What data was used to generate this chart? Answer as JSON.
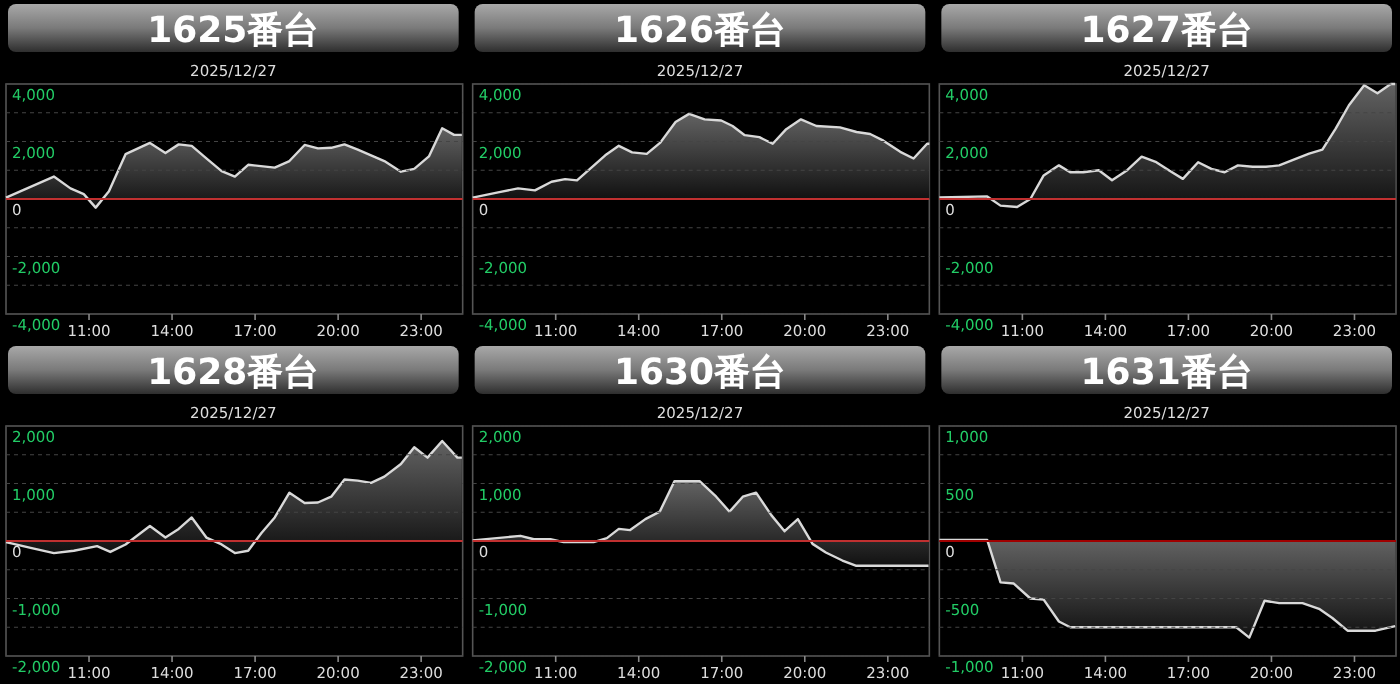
{
  "chart_data": [
    {
      "type": "area",
      "title": "1625番台",
      "subtitle": "2025/12/27",
      "xlim": [
        8,
        24.5
      ],
      "ylim": [
        -4000,
        4000
      ],
      "grid": "y",
      "xticks": [
        {
          "value": 11,
          "label": "11:00"
        },
        {
          "value": 14,
          "label": "14:00"
        },
        {
          "value": 17,
          "label": "17:00"
        },
        {
          "value": 20,
          "label": "20:00"
        },
        {
          "value": 23,
          "label": "23:00"
        }
      ],
      "yticks": [
        {
          "value": 4000,
          "label": "4,000"
        },
        {
          "value": 3000,
          "label": null
        },
        {
          "value": 2000,
          "label": "2,000"
        },
        {
          "value": 1000,
          "label": null
        },
        {
          "value": 0,
          "label": "0"
        },
        {
          "value": -1000,
          "label": null
        },
        {
          "value": -2000,
          "label": "-2,000"
        },
        {
          "value": -3000,
          "label": null
        },
        {
          "value": -4000,
          "label": "-4,000"
        }
      ],
      "ref_lines": [
        {
          "axis": "y",
          "value": 0,
          "color": "#c03030"
        }
      ],
      "x": [
        8,
        9.73,
        10.33,
        10.81,
        11.24,
        11.72,
        12.32,
        13.2,
        13.76,
        14.24,
        14.71,
        15.24,
        15.79,
        16.27,
        16.75,
        17.71,
        18.24,
        18.79,
        19.27,
        19.75,
        20.23,
        20.71,
        21.67,
        22.27,
        22.75,
        23.28,
        23.76,
        24.19,
        24.47
      ],
      "series": [
        {
          "color": "#d9d9d9",
          "values": [
            50,
            780,
            370,
            170,
            -300,
            270,
            1560,
            1950,
            1600,
            1900,
            1850,
            1410,
            970,
            780,
            1190,
            1090,
            1320,
            1880,
            1760,
            1780,
            1900,
            1720,
            1320,
            950,
            1050,
            1480,
            2460,
            2230,
            2230
          ]
        }
      ]
    },
    {
      "type": "area",
      "title": "1626番台",
      "subtitle": "2025/12/27",
      "xlim": [
        8,
        24.5
      ],
      "ylim": [
        -4000,
        4000
      ],
      "grid": "y",
      "xticks": [
        {
          "value": 11,
          "label": "11:00"
        },
        {
          "value": 14,
          "label": "14:00"
        },
        {
          "value": 17,
          "label": "17:00"
        },
        {
          "value": 20,
          "label": "20:00"
        },
        {
          "value": 23,
          "label": "23:00"
        }
      ],
      "yticks": [
        {
          "value": 4000,
          "label": "4,000"
        },
        {
          "value": 3000,
          "label": null
        },
        {
          "value": 2000,
          "label": "2,000"
        },
        {
          "value": 1000,
          "label": null
        },
        {
          "value": 0,
          "label": "0"
        },
        {
          "value": -1000,
          "label": null
        },
        {
          "value": -2000,
          "label": "-2,000"
        },
        {
          "value": -3000,
          "label": null
        },
        {
          "value": -4000,
          "label": "-4,000"
        }
      ],
      "ref_lines": [
        {
          "axis": "y",
          "value": 0,
          "color": "#c03030"
        }
      ],
      "x": [
        8,
        8.92,
        9.64,
        10.25,
        10.85,
        11.34,
        11.77,
        12.31,
        12.79,
        13.28,
        13.76,
        14.29,
        14.78,
        15.33,
        15.82,
        16.38,
        16.98,
        17.39,
        17.83,
        18.36,
        18.84,
        19.33,
        19.86,
        20.42,
        21.27,
        21.87,
        22.36,
        22.84,
        23.45,
        23.93,
        24.42,
        24.5
      ],
      "series": [
        {
          "color": "#d9d9d9",
          "values": [
            50,
            230,
            370,
            300,
            600,
            690,
            650,
            1110,
            1520,
            1850,
            1620,
            1570,
            1960,
            2680,
            2960,
            2770,
            2730,
            2540,
            2220,
            2150,
            1920,
            2430,
            2770,
            2540,
            2490,
            2330,
            2260,
            2030,
            1640,
            1410,
            1920,
            1920
          ]
        }
      ]
    },
    {
      "type": "area",
      "title": "1627番台",
      "subtitle": "2025/12/27",
      "xlim": [
        8,
        24.5
      ],
      "ylim": [
        -4000,
        4000
      ],
      "grid": "y",
      "xticks": [
        {
          "value": 11,
          "label": "11:00"
        },
        {
          "value": 14,
          "label": "14:00"
        },
        {
          "value": 17,
          "label": "17:00"
        },
        {
          "value": 20,
          "label": "20:00"
        },
        {
          "value": 23,
          "label": "23:00"
        }
      ],
      "yticks": [
        {
          "value": 4000,
          "label": "4,000"
        },
        {
          "value": 3000,
          "label": null
        },
        {
          "value": 2000,
          "label": "2,000"
        },
        {
          "value": 1000,
          "label": null
        },
        {
          "value": 0,
          "label": "0"
        },
        {
          "value": -1000,
          "label": null
        },
        {
          "value": -2000,
          "label": "-2,000"
        },
        {
          "value": -3000,
          "label": null
        },
        {
          "value": -4000,
          "label": "-4,000"
        }
      ],
      "ref_lines": [
        {
          "axis": "y",
          "value": 0,
          "color": "#c03030"
        }
      ],
      "x": [
        8,
        9.73,
        10.21,
        10.81,
        11.29,
        11.77,
        12.32,
        12.73,
        13.2,
        13.76,
        14.24,
        14.76,
        15.31,
        15.84,
        16.32,
        16.8,
        17.35,
        17.83,
        18.31,
        18.79,
        19.32,
        19.8,
        20.28,
        20.76,
        21.36,
        21.84,
        22.32,
        22.8,
        23.35,
        23.83,
        24.31,
        24.47
      ],
      "series": [
        {
          "color": "#d9d9d9",
          "values": [
            50,
            90,
            -230,
            -280,
            0,
            820,
            1170,
            930,
            930,
            1000,
            650,
            980,
            1470,
            1280,
            980,
            700,
            1280,
            1050,
            930,
            1170,
            1120,
            1120,
            1170,
            1350,
            1580,
            1720,
            2450,
            3260,
            3960,
            3680,
            4000,
            4000
          ]
        }
      ]
    },
    {
      "type": "area",
      "title": "1628番台",
      "subtitle": "2025/12/27",
      "xlim": [
        8,
        24.5
      ],
      "ylim": [
        -2000,
        2000
      ],
      "grid": "y",
      "xticks": [
        {
          "value": 11,
          "label": "11:00"
        },
        {
          "value": 14,
          "label": "14:00"
        },
        {
          "value": 17,
          "label": "17:00"
        },
        {
          "value": 20,
          "label": "20:00"
        },
        {
          "value": 23,
          "label": "23:00"
        }
      ],
      "yticks": [
        {
          "value": 2000,
          "label": "2,000"
        },
        {
          "value": 1500,
          "label": null
        },
        {
          "value": 1000,
          "label": "1,000"
        },
        {
          "value": 500,
          "label": null
        },
        {
          "value": 0,
          "label": "0"
        },
        {
          "value": -500,
          "label": null
        },
        {
          "value": -1000,
          "label": "-1,000"
        },
        {
          "value": -1500,
          "label": null
        },
        {
          "value": -2000,
          "label": "-2,000"
        }
      ],
      "ref_lines": [
        {
          "axis": "y",
          "value": 0,
          "color": "#c03030"
        }
      ],
      "x": [
        8,
        8.89,
        9.73,
        10.45,
        11.29,
        11.77,
        12.32,
        13.2,
        13.76,
        14.24,
        14.71,
        15.24,
        15.79,
        16.27,
        16.75,
        17.23,
        17.71,
        18.24,
        18.79,
        19.27,
        19.75,
        20.23,
        20.71,
        21.19,
        21.67,
        22.27,
        22.75,
        23.23,
        23.76,
        24.31,
        24.47
      ],
      "series": [
        {
          "color": "#d9d9d9",
          "values": [
            -20,
            -120,
            -210,
            -170,
            -90,
            -190,
            -60,
            260,
            60,
            210,
            410,
            60,
            -60,
            -210,
            -170,
            140,
            410,
            840,
            660,
            670,
            770,
            1070,
            1050,
            1010,
            1120,
            1340,
            1630,
            1450,
            1740,
            1450,
            1450
          ]
        }
      ]
    },
    {
      "type": "area",
      "title": "1630番台",
      "subtitle": "2025/12/27",
      "xlim": [
        8,
        24.5
      ],
      "ylim": [
        -2000,
        2000
      ],
      "grid": "y",
      "xticks": [
        {
          "value": 11,
          "label": "11:00"
        },
        {
          "value": 14,
          "label": "14:00"
        },
        {
          "value": 17,
          "label": "17:00"
        },
        {
          "value": 20,
          "label": "20:00"
        },
        {
          "value": 23,
          "label": "23:00"
        }
      ],
      "yticks": [
        {
          "value": 2000,
          "label": "2,000"
        },
        {
          "value": 1500,
          "label": null
        },
        {
          "value": 1000,
          "label": "1,000"
        },
        {
          "value": 500,
          "label": null
        },
        {
          "value": 0,
          "label": "0"
        },
        {
          "value": -500,
          "label": null
        },
        {
          "value": -1000,
          "label": "-1,000"
        },
        {
          "value": -1500,
          "label": null
        },
        {
          "value": -2000,
          "label": "-2,000"
        }
      ],
      "ref_lines": [
        {
          "axis": "y",
          "value": 0,
          "color": "#c03030"
        }
      ],
      "x": [
        8,
        9.73,
        10.21,
        10.81,
        11.29,
        12.37,
        12.85,
        13.28,
        13.69,
        14.24,
        14.76,
        15.29,
        16.2,
        16.8,
        17.28,
        17.76,
        18.24,
        18.79,
        19.27,
        19.75,
        20.28,
        20.76,
        21.36,
        21.84,
        22.68,
        24.47
      ],
      "series": [
        {
          "color": "#d9d9d9",
          "values": [
            10,
            90,
            30,
            30,
            -20,
            -20,
            50,
            210,
            190,
            380,
            510,
            1040,
            1040,
            770,
            510,
            770,
            840,
            450,
            170,
            380,
            -50,
            -200,
            -340,
            -430,
            -430,
            -430
          ]
        }
      ]
    },
    {
      "type": "area",
      "title": "1631番台",
      "subtitle": "2025/12/27",
      "xlim": [
        8,
        24.5
      ],
      "ylim": [
        -1000,
        1000
      ],
      "grid": "y",
      "xticks": [
        {
          "value": 11,
          "label": "11:00"
        },
        {
          "value": 14,
          "label": "14:00"
        },
        {
          "value": 17,
          "label": "17:00"
        },
        {
          "value": 20,
          "label": "20:00"
        },
        {
          "value": 23,
          "label": "23:00"
        }
      ],
      "yticks": [
        {
          "value": 1000,
          "label": "1,000"
        },
        {
          "value": 750,
          "label": null
        },
        {
          "value": 500,
          "label": "500"
        },
        {
          "value": 250,
          "label": null
        },
        {
          "value": 0,
          "label": "0"
        },
        {
          "value": -250,
          "label": null
        },
        {
          "value": -500,
          "label": "-500"
        },
        {
          "value": -750,
          "label": null
        },
        {
          "value": -1000,
          "label": "-1,000"
        }
      ],
      "ref_lines": [
        {
          "axis": "y",
          "value": 0,
          "color": "#a00000"
        }
      ],
      "x": [
        8,
        9.73,
        10.21,
        10.69,
        11.29,
        11.77,
        12.32,
        12.73,
        18.73,
        19.2,
        19.75,
        20.28,
        21.12,
        21.72,
        22.2,
        22.75,
        23.76,
        24.47
      ],
      "series": [
        {
          "color": "#d9d9d9",
          "values": [
            10,
            10,
            -360,
            -370,
            -500,
            -510,
            -700,
            -750,
            -750,
            -840,
            -520,
            -540,
            -540,
            -590,
            -670,
            -780,
            -780,
            -740
          ]
        }
      ]
    }
  ]
}
